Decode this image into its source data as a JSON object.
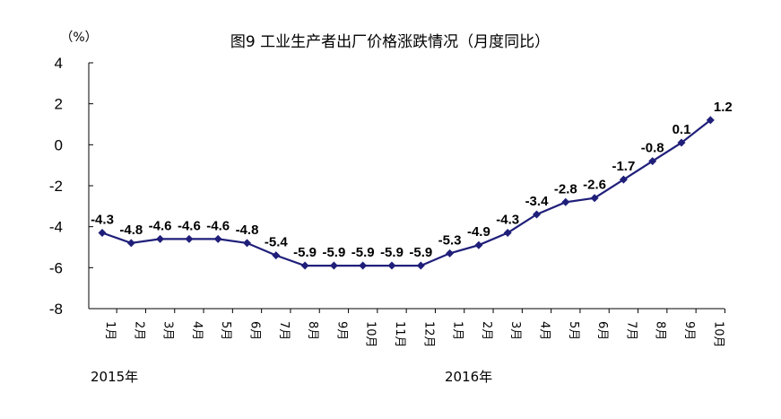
{
  "chart_data": {
    "type": "line",
    "title": "图9  工业生产者出厂价格涨跌情况（月度同比）",
    "unit": "（%）",
    "ylim": [
      -8,
      4
    ],
    "yticks": [
      "4",
      "2",
      "0",
      "-2",
      "-4",
      "-6",
      "-8"
    ],
    "grid": false,
    "categories": [
      "1月",
      "2月",
      "3月",
      "4月",
      "5月",
      "6月",
      "7月",
      "8月",
      "9月",
      "10月",
      "11月",
      "12月",
      "1月",
      "2月",
      "3月",
      "4月",
      "5月",
      "6月",
      "7月",
      "8月",
      "9月",
      "10月"
    ],
    "years": [
      "2015年",
      "2016年"
    ],
    "series": [
      {
        "values": [
          -4.3,
          -4.8,
          -4.6,
          -4.6,
          -4.6,
          -4.8,
          -5.4,
          -5.9,
          -5.9,
          -5.9,
          -5.9,
          -5.9,
          -5.3,
          -4.9,
          -4.3,
          -3.4,
          -2.8,
          -2.6,
          -1.7,
          -0.8,
          0.1,
          1.2
        ],
        "labels": [
          "-4.3",
          "-4.8",
          "-4.6",
          "-4.6",
          "-4.6",
          "-4.8",
          "-5.4",
          "-5.9",
          "-5.9",
          "-5.9",
          "-5.9",
          "-5.9",
          "-5.3",
          "-4.9",
          "-4.3",
          "-3.4",
          "-2.8",
          "-2.6",
          "-1.7",
          "-0.8",
          "0.1",
          "1.2"
        ],
        "color": "#1F1F7A"
      }
    ]
  }
}
